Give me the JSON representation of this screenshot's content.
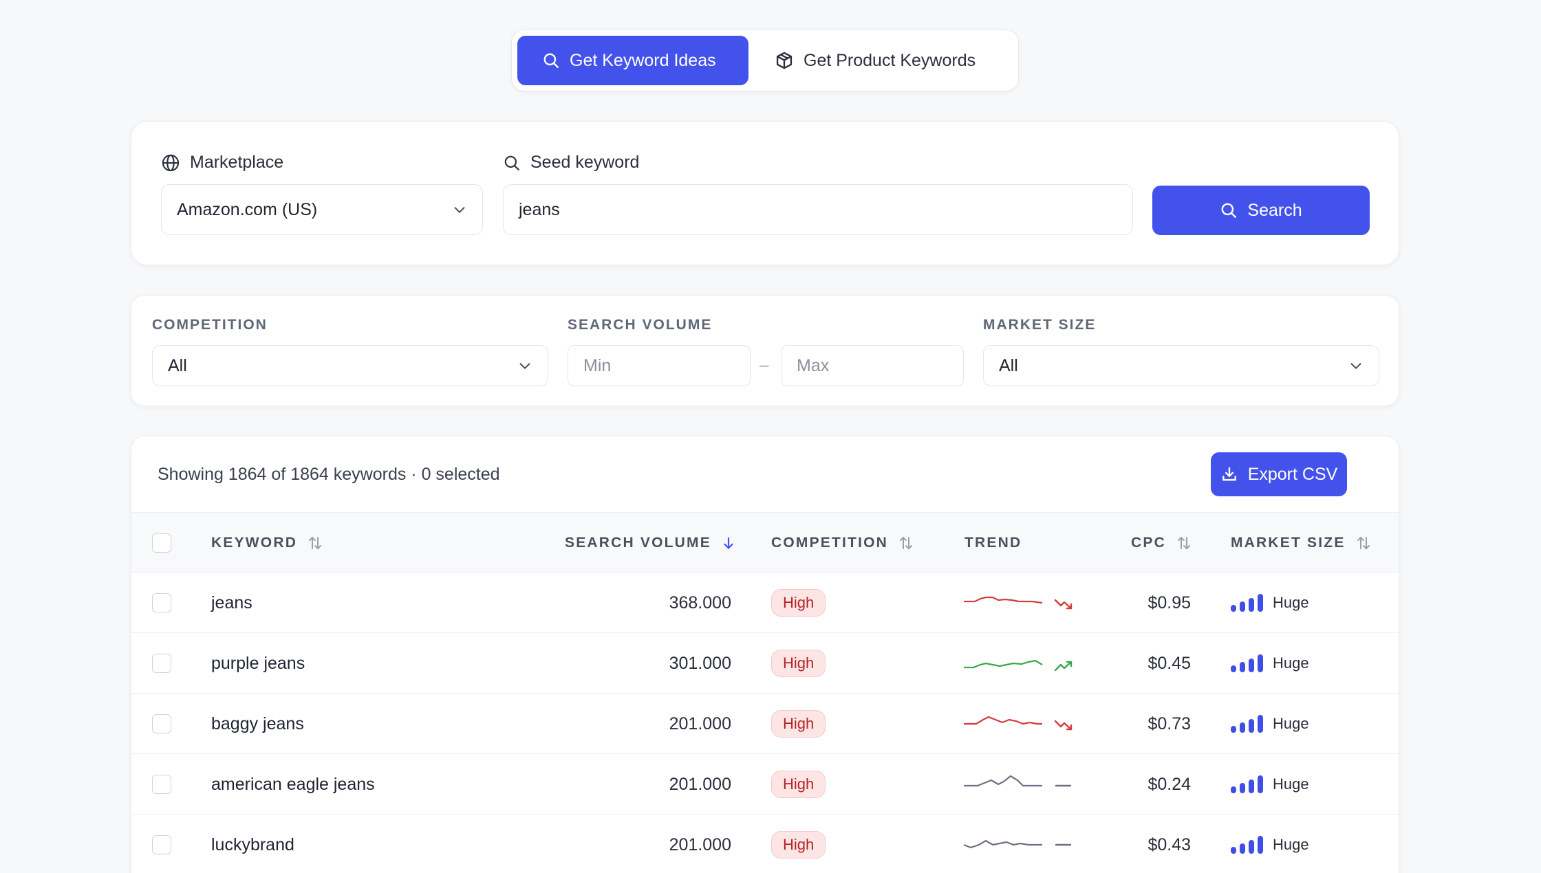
{
  "tabs": [
    {
      "label": "Get Keyword Ideas",
      "icon": "search-icon",
      "active": true
    },
    {
      "label": "Get Product Keywords",
      "icon": "package-icon",
      "active": false
    }
  ],
  "search": {
    "marketplace_label": "Marketplace",
    "marketplace_value": "Amazon.com (US)",
    "seed_label": "Seed keyword",
    "seed_value": "jeans",
    "button_label": "Search"
  },
  "filters": {
    "competition_label": "COMPETITION",
    "competition_value": "All",
    "volume_label": "SEARCH VOLUME",
    "volume_min_placeholder": "Min",
    "volume_max_placeholder": "Max",
    "volume_separator": "–",
    "market_label": "MARKET SIZE",
    "market_value": "All"
  },
  "table": {
    "summary": "Showing 1864 of 1864 keywords · 0 selected",
    "export_label": "Export CSV",
    "columns": {
      "keyword": "KEYWORD",
      "volume": "SEARCH VOLUME",
      "competition": "COMPETITION",
      "trend": "TREND",
      "cpc": "CPC",
      "market": "MARKET SIZE"
    },
    "rows": [
      {
        "keyword": "jeans",
        "volume": "368.000",
        "competition": "High",
        "trend": "down",
        "cpc": "$0.95",
        "market": "Huge"
      },
      {
        "keyword": "purple jeans",
        "volume": "301.000",
        "competition": "High",
        "trend": "up",
        "cpc": "$0.45",
        "market": "Huge"
      },
      {
        "keyword": "baggy jeans",
        "volume": "201.000",
        "competition": "High",
        "trend": "down",
        "cpc": "$0.73",
        "market": "Huge"
      },
      {
        "keyword": "american eagle jeans",
        "volume": "201.000",
        "competition": "High",
        "trend": "flat",
        "cpc": "$0.24",
        "market": "Huge"
      },
      {
        "keyword": "luckybrand",
        "volume": "201.000",
        "competition": "High",
        "trend": "flat",
        "cpc": "$0.43",
        "market": "Huge"
      }
    ]
  },
  "colors": {
    "accent": "#4452ec",
    "trend_down": "#d43b3b",
    "trend_up": "#3aa54a",
    "trend_flat": "#6b7180",
    "badge_high_bg": "#fde5e5",
    "badge_high_text": "#b42323"
  }
}
